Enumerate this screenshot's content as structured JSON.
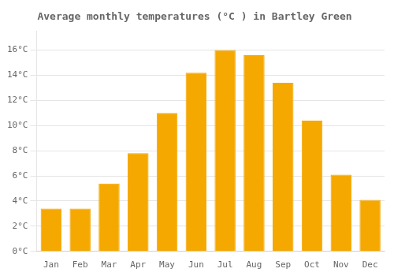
{
  "chart_data": {
    "type": "bar",
    "title": "Average monthly temperatures (°C ) in Bartley Green",
    "categories": [
      "Jan",
      "Feb",
      "Mar",
      "Apr",
      "May",
      "Jun",
      "Jul",
      "Aug",
      "Sep",
      "Oct",
      "Nov",
      "Dec"
    ],
    "values": [
      3.4,
      3.4,
      5.4,
      7.8,
      11.0,
      14.2,
      16.0,
      15.6,
      13.4,
      10.4,
      6.1,
      4.1
    ],
    "color": "#F5A800",
    "ylim": [
      0,
      17.5
    ],
    "yticks": [
      {
        "value": 0,
        "label": "0°C"
      },
      {
        "value": 2,
        "label": "2°C"
      },
      {
        "value": 4,
        "label": "4°C"
      },
      {
        "value": 6,
        "label": "6°C"
      },
      {
        "value": 8,
        "label": "8°C"
      },
      {
        "value": 10,
        "label": "10°C"
      },
      {
        "value": 12,
        "label": "12°C"
      },
      {
        "value": 14,
        "label": "14°C"
      },
      {
        "value": 16,
        "label": "16°C"
      }
    ],
    "grid": true
  }
}
